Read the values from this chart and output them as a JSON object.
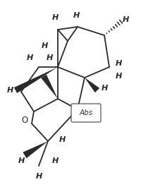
{
  "bg_color": "#ffffff",
  "line_color": "#2a2a2a",
  "figsize": [
    2.01,
    2.65
  ],
  "dpi": 100,
  "xlim": [
    0,
    201
  ],
  "ylim": [
    0,
    265
  ]
}
